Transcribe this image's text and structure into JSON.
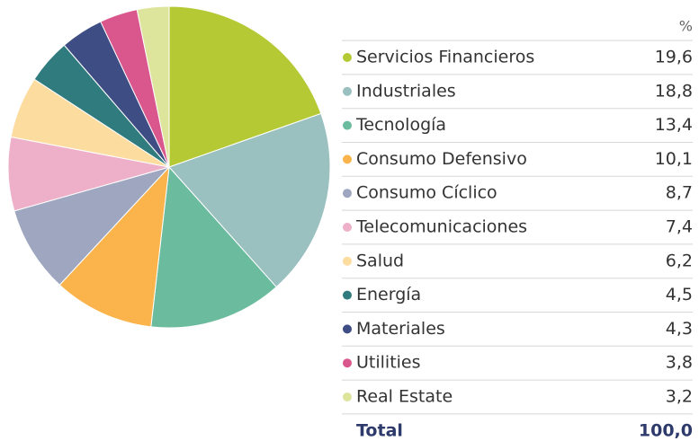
{
  "chart_data": {
    "type": "pie",
    "unit_label": "%",
    "categories": [
      "Servicios Financieros",
      "Industriales",
      "Tecnología",
      "Consumo Defensivo",
      "Consumo Cíclico",
      "Telecomunicaciones",
      "Salud",
      "Energía",
      "Materiales",
      "Utilities",
      "Real Estate"
    ],
    "values": [
      19.6,
      18.8,
      13.4,
      10.1,
      8.7,
      7.4,
      6.2,
      4.5,
      4.3,
      3.8,
      3.2
    ],
    "value_labels": [
      "19,6",
      "18,8",
      "13,4",
      "10,1",
      "8,7",
      "7,4",
      "6,2",
      "4,5",
      "4,3",
      "3,8",
      "3,2"
    ],
    "colors": [
      "#b5c934",
      "#9bc0c0",
      "#6bbb9e",
      "#fbb44c",
      "#9ea6c0",
      "#eeb0c8",
      "#fddca0",
      "#2f7b7d",
      "#3f4d85",
      "#d9578d",
      "#dde49c"
    ],
    "total": {
      "label": "Total",
      "value": 100,
      "value_label": "100,0"
    }
  }
}
